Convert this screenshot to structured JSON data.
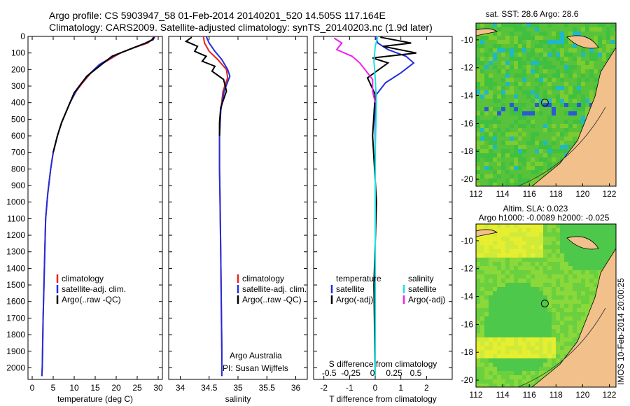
{
  "header": {
    "line1": "Argo profile: CS 5903947_58 01-Feb-2014 20140201_520 14.505S 117.164E",
    "line2": "Climatology: CARS2009. Satellite-adjusted climatology: synTS_20140203.nc (1.9d later)"
  },
  "side_label": "IMOS 10-Feb-2014 20:00:25",
  "colors": {
    "climatology": "#e8221c",
    "satellite": "#1f2fe0",
    "argo": "#000000",
    "cyan": "#1fe0e0",
    "magenta": "#ee22ee"
  },
  "chart_data": [
    {
      "type": "line",
      "name": "temperature",
      "xlabel": "temperature (deg C)",
      "ylabel": "",
      "xlim": [
        -1,
        31
      ],
      "ylim": [
        2070,
        0
      ],
      "x_ticks": [
        "0",
        "5",
        "10",
        "15",
        "20",
        "25",
        "30"
      ],
      "x_tick_values": [
        0,
        5,
        10,
        15,
        20,
        25,
        30
      ],
      "y_ticks": [
        "0",
        "100",
        "200",
        "300",
        "400",
        "500",
        "600",
        "700",
        "800",
        "900",
        "1000",
        "1100",
        "1200",
        "1300",
        "1400",
        "1500",
        "1600",
        "1700",
        "1800",
        "1900",
        "2000"
      ],
      "legend": [
        "climatology",
        "satellite-adj. clim.",
        "Argo(..raw -QC)"
      ],
      "series": [
        {
          "name": "climatology",
          "color": "#e8221c",
          "x": [
            29.0,
            28.5,
            27.5,
            24,
            21,
            17,
            14,
            12,
            10.5,
            9,
            8,
            7,
            6,
            5,
            4.4,
            3.7,
            3.2,
            3.0,
            2.8,
            2.6,
            2.5,
            2.4,
            2.3
          ],
          "y": [
            0,
            20,
            40,
            70,
            100,
            160,
            220,
            280,
            330,
            400,
            460,
            520,
            600,
            700,
            800,
            950,
            1100,
            1300,
            1500,
            1700,
            1850,
            2000,
            2050
          ]
        },
        {
          "name": "satellite-adj. clim.",
          "color": "#1f2fe0",
          "x": [
            29.2,
            28.8,
            27,
            24,
            20,
            16,
            13.5,
            11.5,
            10.2,
            9,
            8,
            7,
            6,
            5,
            4.4,
            3.7,
            3.2,
            3.0,
            2.8,
            2.6,
            2.5,
            2.4,
            2.3
          ],
          "y": [
            0,
            20,
            40,
            70,
            110,
            170,
            230,
            290,
            340,
            400,
            460,
            520,
            600,
            700,
            800,
            950,
            1100,
            1300,
            1500,
            1700,
            1850,
            2000,
            2050
          ]
        },
        {
          "name": "Argo(..raw -QC)",
          "color": "#000000",
          "x": [
            29.0,
            28.6,
            27.0,
            23,
            19,
            16,
            13,
            11.5,
            10.0,
            9,
            8,
            7,
            6,
            5
          ],
          "y": [
            5,
            20,
            40,
            80,
            120,
            180,
            240,
            290,
            340,
            400,
            460,
            520,
            600,
            700
          ]
        }
      ]
    },
    {
      "type": "line",
      "name": "salinity",
      "xlabel": "salinity",
      "xlim": [
        33.8,
        36.2
      ],
      "ylim": [
        2070,
        0
      ],
      "x_ticks": [
        "34",
        "34.5",
        "35",
        "35.5",
        "36"
      ],
      "x_tick_values": [
        34,
        34.5,
        35,
        35.5,
        36
      ],
      "legend": [
        "climatology",
        "satellite-adj. clim.",
        "Argo(..raw -QC)"
      ],
      "annotation": [
        "Argo Australia",
        "PI: Susan Wijffels"
      ],
      "series": [
        {
          "name": "climatology",
          "color": "#e8221c",
          "x": [
            34.4,
            34.42,
            34.5,
            34.65,
            34.8,
            34.82,
            34.74,
            34.7,
            34.68,
            34.68,
            34.69,
            34.7,
            34.71,
            34.72,
            34.72
          ],
          "y": [
            0,
            40,
            90,
            140,
            200,
            250,
            330,
            450,
            600,
            800,
            1000,
            1300,
            1600,
            1900,
            2050
          ]
        },
        {
          "name": "satellite-adj. clim.",
          "color": "#1f2fe0",
          "x": [
            34.45,
            34.5,
            34.6,
            34.72,
            34.82,
            34.86,
            34.76,
            34.7,
            34.68,
            34.68,
            34.69,
            34.7,
            34.71,
            34.72,
            34.72
          ],
          "y": [
            0,
            40,
            90,
            140,
            200,
            240,
            330,
            450,
            600,
            800,
            1000,
            1300,
            1600,
            1900,
            2050
          ]
        },
        {
          "name": "Argo(..raw -QC)",
          "color": "#000000",
          "x": [
            34.2,
            34.1,
            34.3,
            34.25,
            34.45,
            34.38,
            34.6,
            34.55,
            34.75,
            34.8,
            34.7,
            34.68,
            34.68
          ],
          "y": [
            5,
            30,
            60,
            90,
            120,
            150,
            180,
            210,
            260,
            330,
            430,
            520,
            600
          ]
        }
      ]
    },
    {
      "type": "line",
      "name": "difference",
      "xlabel": "T difference from climatology",
      "xlabel2": "S difference from climatology",
      "xlim": [
        -2.4,
        3.0
      ],
      "ylim": [
        2070,
        0
      ],
      "x_ticks": [
        "-2",
        "-1",
        "0",
        "1",
        "2"
      ],
      "x_tick_values": [
        -2,
        -1,
        0,
        1,
        2
      ],
      "top_ticks": [
        "-0.5",
        "-0.25",
        "0",
        "0.25",
        "0.5"
      ],
      "top_tick_values": [
        -0.5,
        -0.25,
        0,
        0.25,
        0.5
      ],
      "legend": [
        "temperature",
        "satellite",
        "Argo(-adj)",
        "salinity",
        "satellite",
        "Argo(-adj)"
      ],
      "series": [
        {
          "name": "T satellite",
          "color": "#1f2fe0",
          "x": [
            0,
            0.1,
            0.5,
            1.2,
            1.5,
            1.0,
            0.4,
            0.05,
            0.0,
            0.0,
            0.0
          ],
          "y": [
            0,
            40,
            80,
            120,
            160,
            220,
            280,
            350,
            500,
            1000,
            2050
          ]
        },
        {
          "name": "T Argo(-adj)",
          "color": "#000000",
          "x": [
            0.2,
            1.4,
            0.3,
            1.6,
            -0.1,
            0.5,
            -0.3,
            0.0,
            -0.1,
            0.05,
            -0.05,
            0.0
          ],
          "y": [
            5,
            40,
            60,
            100,
            130,
            160,
            250,
            350,
            600,
            1000,
            1500,
            2050
          ]
        },
        {
          "name": "S satellite",
          "color": "#1fe0e0",
          "x": [
            0.1,
            0.0,
            -0.05,
            0.0,
            0.05,
            0.0,
            0.0,
            0.0
          ],
          "y": [
            0,
            60,
            150,
            250,
            400,
            700,
            1200,
            2050
          ]
        },
        {
          "name": "S Argo(-adj)",
          "color": "#ee22ee",
          "x": [
            -1.6,
            -1.3,
            -1.5,
            -0.9,
            -0.6,
            -0.4,
            -0.1,
            -0.1,
            0.0
          ],
          "y": [
            10,
            40,
            80,
            120,
            160,
            200,
            260,
            330,
            400
          ]
        }
      ]
    },
    {
      "type": "heatmap",
      "name": "sst-map",
      "title": "sat. SST: 28.6 Argo: 28.6",
      "x_ticks": [
        "112",
        "114",
        "116",
        "118",
        "120",
        "122"
      ],
      "y_ticks": [
        "-10",
        "-12",
        "-14",
        "-16",
        "-18",
        "-20"
      ],
      "xlim": [
        112,
        122.5
      ],
      "ylim": [
        -20.5,
        -8.8
      ],
      "marker": {
        "lon": 117.164,
        "lat": -14.505
      }
    },
    {
      "type": "heatmap",
      "name": "sla-map",
      "title": "Altim. SLA: 0.023",
      "subtitle": "Argo h1000: -0.0089 h2000: -0.025",
      "x_ticks": [
        "112",
        "114",
        "116",
        "118",
        "120",
        "122"
      ],
      "y_ticks": [
        "-10",
        "-12",
        "-14",
        "-16",
        "-18",
        "-20"
      ],
      "xlim": [
        112,
        122.5
      ],
      "ylim": [
        -20.5,
        -8.8
      ],
      "marker": {
        "lon": 117.164,
        "lat": -14.505
      }
    }
  ]
}
